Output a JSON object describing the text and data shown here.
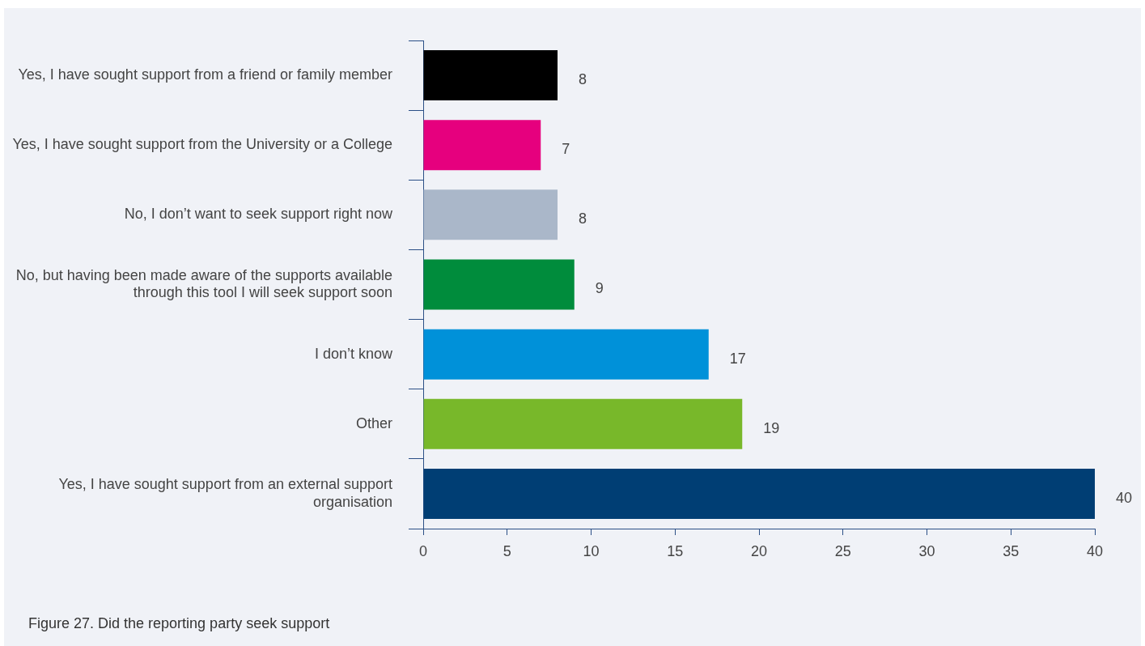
{
  "chart_data": {
    "type": "bar",
    "orientation": "horizontal",
    "categories": [
      "Yes, I have sought support from a friend or family member",
      "Yes, I have sought support from the University or a College",
      "No, I don’t want to seek support right now",
      "No, but having been made aware of the supports available through this tool I will seek support soon",
      "I don’t know",
      "Other",
      "Yes, I have sought support from an external support organisation"
    ],
    "values": [
      8,
      7,
      8,
      9,
      17,
      19,
      40
    ],
    "colors": [
      "#000000",
      "#e6007e",
      "#aab7c9",
      "#008c3c",
      "#0091d9",
      "#78b82a",
      "#003e74"
    ],
    "xlim": [
      0,
      40
    ],
    "xticks": [
      0,
      5,
      10,
      15,
      20,
      25,
      30,
      35,
      40
    ],
    "data_labels": true,
    "grid": false,
    "legend": false,
    "annotations": [
      "Figure 27. Did the reporting party seek support"
    ]
  }
}
